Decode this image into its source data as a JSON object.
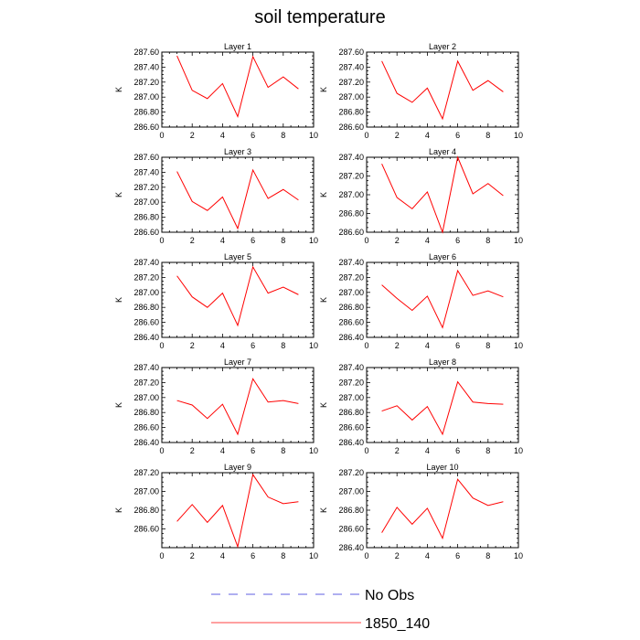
{
  "title": "soil temperature",
  "legend": {
    "entries": [
      {
        "label": "No Obs",
        "color": "#2b2bd6",
        "style": "dashed"
      },
      {
        "label": "1850_140",
        "color": "#ff0000",
        "style": "solid"
      }
    ]
  },
  "chart_data": [
    {
      "type": "line",
      "title": "Layer 1",
      "ylabel": "K",
      "x": [
        1,
        2,
        3,
        4,
        5,
        6,
        7,
        8,
        9
      ],
      "xlim": [
        0,
        10
      ],
      "xticks": [
        0,
        2,
        4,
        6,
        8,
        10
      ],
      "ylim": [
        286.6,
        287.6
      ],
      "yticks": [
        286.6,
        286.8,
        287.0,
        287.2,
        287.4,
        287.6
      ],
      "ytick_labels": [
        "286.60",
        "286.80",
        "287.00",
        "287.20",
        "287.40",
        "287.60"
      ],
      "series": [
        {
          "name": "1850_140",
          "color": "#ff0000",
          "values": [
            287.55,
            287.09,
            286.98,
            287.18,
            286.74,
            287.54,
            287.13,
            287.27,
            287.11
          ]
        }
      ]
    },
    {
      "type": "line",
      "title": "Layer 2",
      "ylabel": "K",
      "x": [
        1,
        2,
        3,
        4,
        5,
        6,
        7,
        8,
        9
      ],
      "xlim": [
        0,
        10
      ],
      "xticks": [
        0,
        2,
        4,
        6,
        8,
        10
      ],
      "ylim": [
        286.6,
        287.6
      ],
      "yticks": [
        286.6,
        286.8,
        287.0,
        287.2,
        287.4,
        287.6
      ],
      "ytick_labels": [
        "286.60",
        "286.80",
        "287.00",
        "287.20",
        "287.40",
        "287.60"
      ],
      "series": [
        {
          "name": "1850_140",
          "color": "#ff0000",
          "values": [
            287.48,
            287.05,
            286.93,
            287.12,
            286.71,
            287.48,
            287.09,
            287.22,
            287.07
          ]
        }
      ]
    },
    {
      "type": "line",
      "title": "Layer 3",
      "ylabel": "K",
      "x": [
        1,
        2,
        3,
        4,
        5,
        6,
        7,
        8,
        9
      ],
      "xlim": [
        0,
        10
      ],
      "xticks": [
        0,
        2,
        4,
        6,
        8,
        10
      ],
      "ylim": [
        286.6,
        287.6
      ],
      "yticks": [
        286.6,
        286.8,
        287.0,
        287.2,
        287.4,
        287.6
      ],
      "ytick_labels": [
        "286.60",
        "286.80",
        "287.00",
        "287.20",
        "287.40",
        "287.60"
      ],
      "series": [
        {
          "name": "1850_140",
          "color": "#ff0000",
          "values": [
            287.41,
            287.01,
            286.89,
            287.07,
            286.65,
            287.43,
            287.05,
            287.17,
            287.03
          ]
        }
      ]
    },
    {
      "type": "line",
      "title": "Layer 4",
      "ylabel": "K",
      "x": [
        1,
        2,
        3,
        4,
        5,
        6,
        7,
        8,
        9
      ],
      "xlim": [
        0,
        10
      ],
      "xticks": [
        0,
        2,
        4,
        6,
        8,
        10
      ],
      "ylim": [
        286.6,
        287.4
      ],
      "yticks": [
        286.6,
        286.8,
        287.0,
        287.2,
        287.4
      ],
      "ytick_labels": [
        "286.60",
        "286.80",
        "287.00",
        "287.20",
        "287.40"
      ],
      "series": [
        {
          "name": "1850_140",
          "color": "#ff0000",
          "values": [
            287.33,
            286.97,
            286.85,
            287.03,
            286.6,
            287.4,
            287.01,
            287.12,
            286.99
          ]
        }
      ]
    },
    {
      "type": "line",
      "title": "Layer 5",
      "ylabel": "K",
      "x": [
        1,
        2,
        3,
        4,
        5,
        6,
        7,
        8,
        9
      ],
      "xlim": [
        0,
        10
      ],
      "xticks": [
        0,
        2,
        4,
        6,
        8,
        10
      ],
      "ylim": [
        286.4,
        287.4
      ],
      "yticks": [
        286.4,
        286.6,
        286.8,
        287.0,
        287.2,
        287.4
      ],
      "ytick_labels": [
        "286.40",
        "286.60",
        "286.80",
        "287.00",
        "287.20",
        "287.40"
      ],
      "series": [
        {
          "name": "1850_140",
          "color": "#ff0000",
          "values": [
            287.22,
            286.94,
            286.8,
            286.99,
            286.56,
            287.34,
            286.99,
            287.07,
            286.97
          ]
        }
      ]
    },
    {
      "type": "line",
      "title": "Layer 6",
      "ylabel": "K",
      "x": [
        1,
        2,
        3,
        4,
        5,
        6,
        7,
        8,
        9
      ],
      "xlim": [
        0,
        10
      ],
      "xticks": [
        0,
        2,
        4,
        6,
        8,
        10
      ],
      "ylim": [
        286.4,
        287.4
      ],
      "yticks": [
        286.4,
        286.6,
        286.8,
        287.0,
        287.2,
        287.4
      ],
      "ytick_labels": [
        "286.40",
        "286.60",
        "286.80",
        "287.00",
        "287.20",
        "287.40"
      ],
      "series": [
        {
          "name": "1850_140",
          "color": "#ff0000",
          "values": [
            287.1,
            286.92,
            286.76,
            286.95,
            286.53,
            287.29,
            286.96,
            287.02,
            286.94
          ]
        }
      ]
    },
    {
      "type": "line",
      "title": "Layer 7",
      "ylabel": "K",
      "x": [
        1,
        2,
        3,
        4,
        5,
        6,
        7,
        8,
        9
      ],
      "xlim": [
        0,
        10
      ],
      "xticks": [
        0,
        2,
        4,
        6,
        8,
        10
      ],
      "ylim": [
        286.4,
        287.4
      ],
      "yticks": [
        286.4,
        286.6,
        286.8,
        287.0,
        287.2,
        287.4
      ],
      "ytick_labels": [
        "286.40",
        "286.60",
        "286.80",
        "287.00",
        "287.20",
        "287.40"
      ],
      "series": [
        {
          "name": "1850_140",
          "color": "#ff0000",
          "values": [
            286.96,
            286.9,
            286.72,
            286.91,
            286.51,
            287.25,
            286.94,
            286.96,
            286.92
          ]
        }
      ]
    },
    {
      "type": "line",
      "title": "Layer 8",
      "ylabel": "K",
      "x": [
        1,
        2,
        3,
        4,
        5,
        6,
        7,
        8,
        9
      ],
      "xlim": [
        0,
        10
      ],
      "xticks": [
        0,
        2,
        4,
        6,
        8,
        10
      ],
      "ylim": [
        286.4,
        287.4
      ],
      "yticks": [
        286.4,
        286.6,
        286.8,
        287.0,
        287.2,
        287.4
      ],
      "ytick_labels": [
        "286.40",
        "286.60",
        "286.80",
        "287.00",
        "287.20",
        "287.40"
      ],
      "series": [
        {
          "name": "1850_140",
          "color": "#ff0000",
          "values": [
            286.82,
            286.89,
            286.7,
            286.88,
            286.51,
            287.21,
            286.94,
            286.92,
            286.91
          ]
        }
      ]
    },
    {
      "type": "line",
      "title": "Layer 9",
      "ylabel": "K",
      "x": [
        1,
        2,
        3,
        4,
        5,
        6,
        7,
        8,
        9
      ],
      "xlim": [
        0,
        10
      ],
      "xticks": [
        0,
        2,
        4,
        6,
        8,
        10
      ],
      "ylim": [
        286.4,
        287.2
      ],
      "yticks": [
        286.6,
        286.8,
        287.0,
        287.2
      ],
      "ytick_labels": [
        "286.60",
        "286.80",
        "287.00",
        "287.20"
      ],
      "series": [
        {
          "name": "1850_140",
          "color": "#ff0000",
          "values": [
            286.68,
            286.86,
            286.67,
            286.85,
            286.41,
            287.18,
            286.94,
            286.87,
            286.89
          ]
        }
      ]
    },
    {
      "type": "line",
      "title": "Layer 10",
      "ylabel": "K",
      "x": [
        1,
        2,
        3,
        4,
        5,
        6,
        7,
        8,
        9
      ],
      "xlim": [
        0,
        10
      ],
      "xticks": [
        0,
        2,
        4,
        6,
        8,
        10
      ],
      "ylim": [
        286.4,
        287.2
      ],
      "yticks": [
        286.4,
        286.6,
        286.8,
        287.0,
        287.2
      ],
      "ytick_labels": [
        "286.40",
        "286.60",
        "286.80",
        "287.00",
        "287.20"
      ],
      "series": [
        {
          "name": "1850_140",
          "color": "#ff0000",
          "values": [
            286.56,
            286.83,
            286.65,
            286.82,
            286.5,
            287.13,
            286.93,
            286.85,
            286.89
          ]
        }
      ]
    }
  ]
}
